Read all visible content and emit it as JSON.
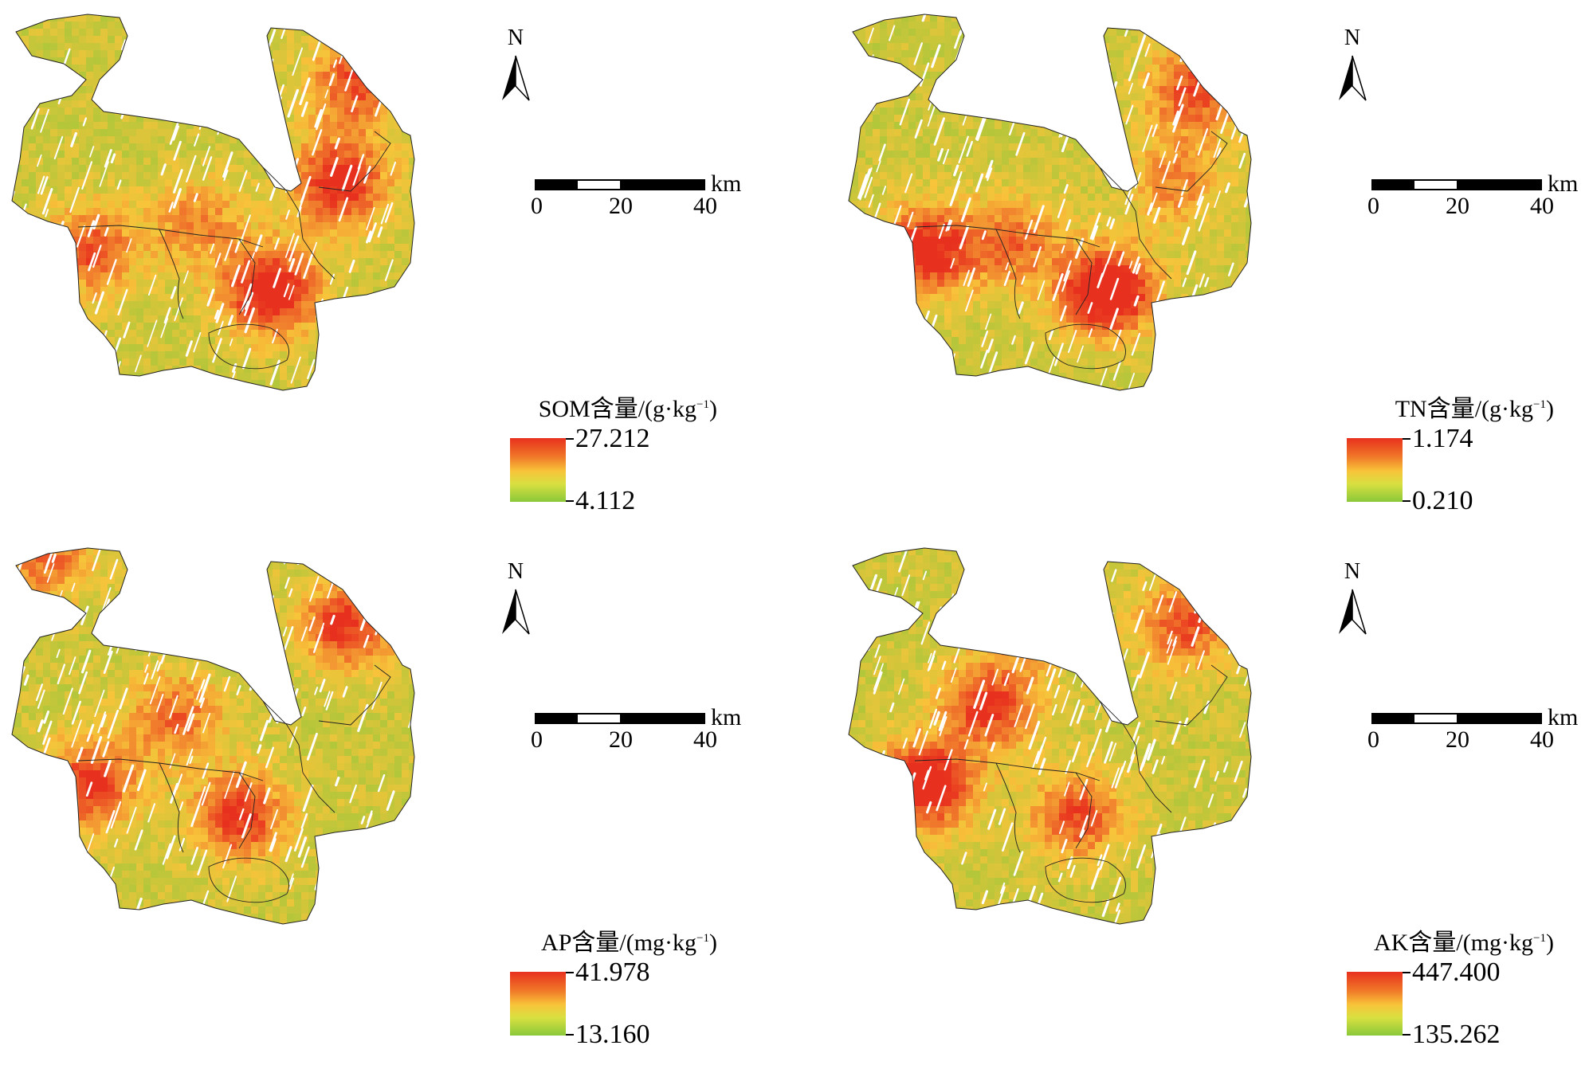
{
  "panels": [
    {
      "id": "som",
      "north_label": "N",
      "scale": {
        "labels": [
          "0",
          "20",
          "40"
        ],
        "unit": "km"
      },
      "legend": {
        "title": "SOM含量/(g·kg",
        "sup": "−1",
        "close": ")",
        "max": "27.212",
        "min": "4.112"
      },
      "colors": {
        "high": "#e8301e",
        "mid": "#f8c43a",
        "low": "#8ac83a"
      },
      "hotspots": [
        [
          0.62,
          0.72,
          0.9
        ],
        [
          0.78,
          0.45,
          0.8
        ],
        [
          0.2,
          0.62,
          0.6
        ],
        [
          0.82,
          0.2,
          0.6
        ],
        [
          0.45,
          0.55,
          0.4
        ]
      ]
    },
    {
      "id": "tn",
      "north_label": "N",
      "scale": {
        "labels": [
          "0",
          "20",
          "40"
        ],
        "unit": "km"
      },
      "legend": {
        "title": "TN含量/(g·kg",
        "sup": "−1",
        "close": ")",
        "max": "1.174",
        "min": "0.210"
      },
      "colors": {
        "high": "#e8301e",
        "mid": "#f8c43a",
        "low": "#8ac83a"
      },
      "hotspots": [
        [
          0.62,
          0.72,
          1.0
        ],
        [
          0.2,
          0.62,
          0.8
        ],
        [
          0.82,
          0.22,
          0.6
        ],
        [
          0.4,
          0.6,
          0.5
        ],
        [
          0.78,
          0.45,
          0.4
        ]
      ]
    },
    {
      "id": "ap",
      "north_label": "N",
      "scale": {
        "labels": [
          "0",
          "20",
          "40"
        ],
        "unit": "km"
      },
      "legend": {
        "title": "AP含量/(mg·kg",
        "sup": "−1",
        "close": ")",
        "max": "41.978",
        "min": "13.160"
      },
      "colors": {
        "high": "#e8301e",
        "mid": "#f8c43a",
        "low": "#8ac83a"
      },
      "hotspots": [
        [
          0.8,
          0.22,
          0.7
        ],
        [
          0.2,
          0.62,
          0.7
        ],
        [
          0.55,
          0.7,
          0.7
        ],
        [
          0.4,
          0.45,
          0.5
        ],
        [
          0.1,
          0.05,
          0.5
        ]
      ]
    },
    {
      "id": "ak",
      "north_label": "N",
      "scale": {
        "labels": [
          "0",
          "20",
          "40"
        ],
        "unit": "km"
      },
      "legend": {
        "title": "AK含量/(mg·kg",
        "sup": "−1",
        "close": ")",
        "max": "447.400",
        "min": "135.262"
      },
      "colors": {
        "high": "#e8301e",
        "mid": "#f8c43a",
        "low": "#8ac83a"
      },
      "hotspots": [
        [
          0.2,
          0.62,
          0.9
        ],
        [
          0.35,
          0.42,
          0.7
        ],
        [
          0.8,
          0.22,
          0.6
        ],
        [
          0.55,
          0.7,
          0.6
        ],
        [
          0.45,
          0.2,
          0.4
        ]
      ]
    }
  ]
}
